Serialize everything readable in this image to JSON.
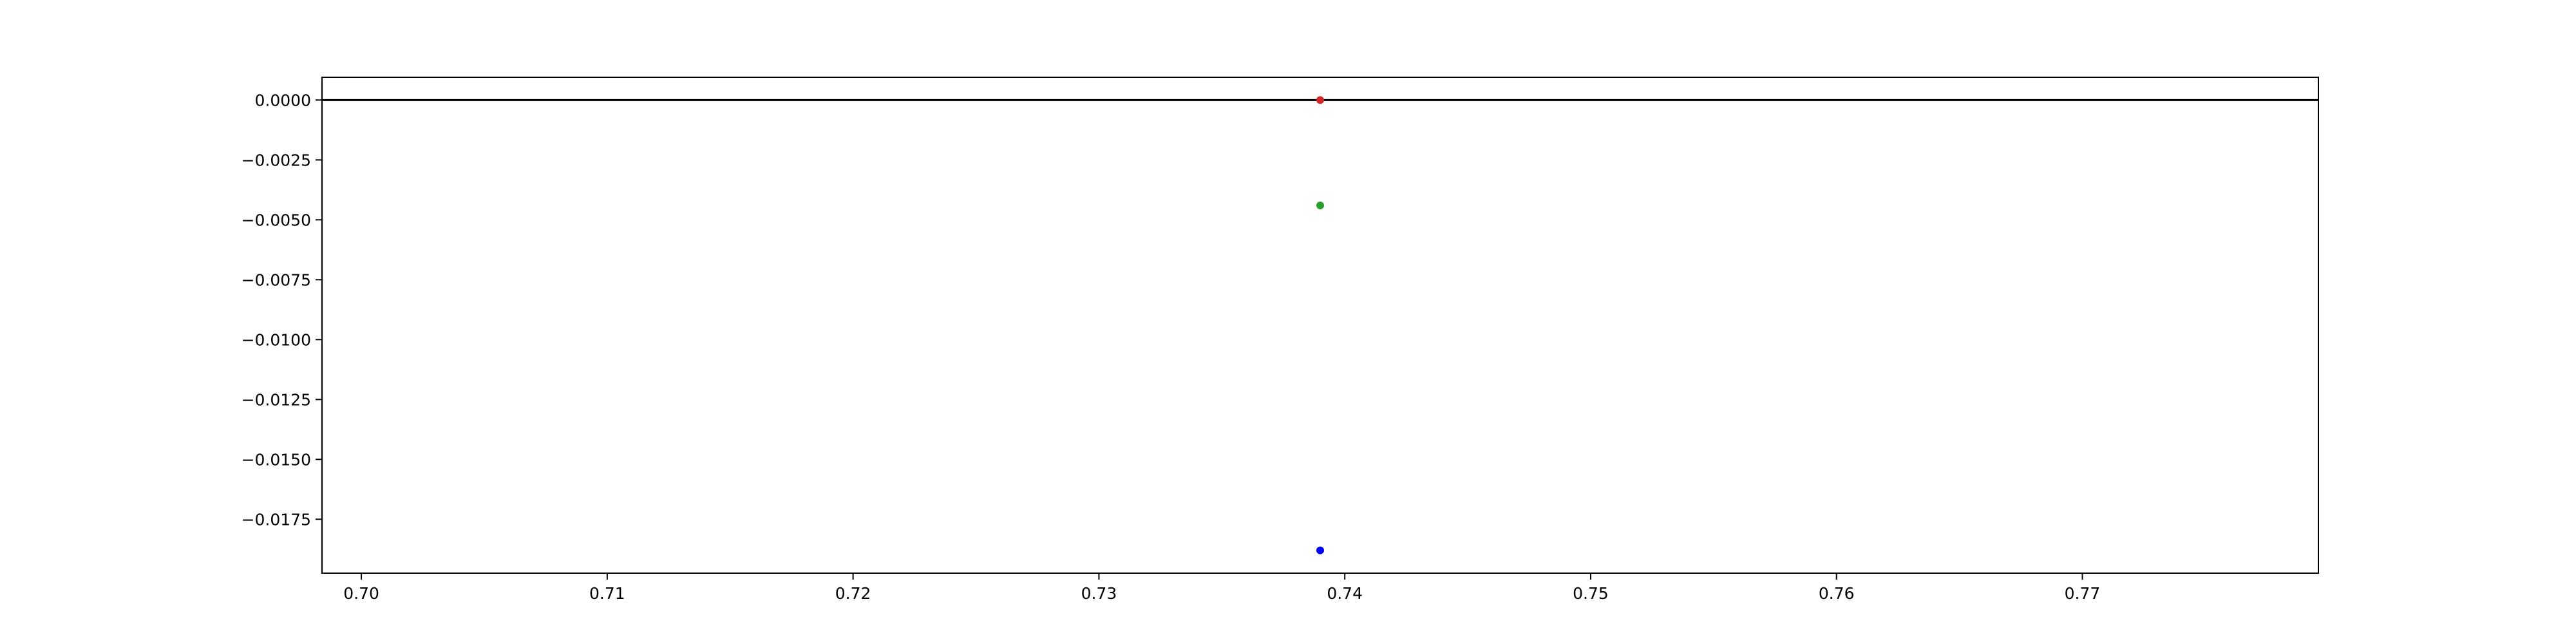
{
  "chart_data": {
    "type": "scatter",
    "title": "",
    "xlabel": "",
    "ylabel": "",
    "xlim": [
      0.6984,
      0.7796
    ],
    "ylim": [
      -0.01975,
      0.00095
    ],
    "xticks": [
      "0.70",
      "0.71",
      "0.72",
      "0.73",
      "0.74",
      "0.75",
      "0.76",
      "0.77"
    ],
    "xtick_values": [
      0.7,
      0.71,
      0.72,
      0.73,
      0.74,
      0.75,
      0.76,
      0.77
    ],
    "yticks": [
      "0.0000",
      "−0.0025",
      "−0.0050",
      "−0.0075",
      "−0.0100",
      "−0.0125",
      "−0.0150",
      "−0.0175"
    ],
    "ytick_values": [
      0.0,
      -0.0025,
      -0.005,
      -0.0075,
      -0.01,
      -0.0125,
      -0.015,
      -0.0175
    ],
    "hline": 0.0,
    "grid": false,
    "series": [
      {
        "color": "#d62728",
        "x": [
          0.739
        ],
        "y": [
          0.0
        ]
      },
      {
        "color": "#2ca02c",
        "x": [
          0.739
        ],
        "y": [
          -0.0044
        ]
      },
      {
        "color": "#0000ff",
        "x": [
          0.739
        ],
        "y": [
          -0.0188
        ]
      }
    ]
  }
}
